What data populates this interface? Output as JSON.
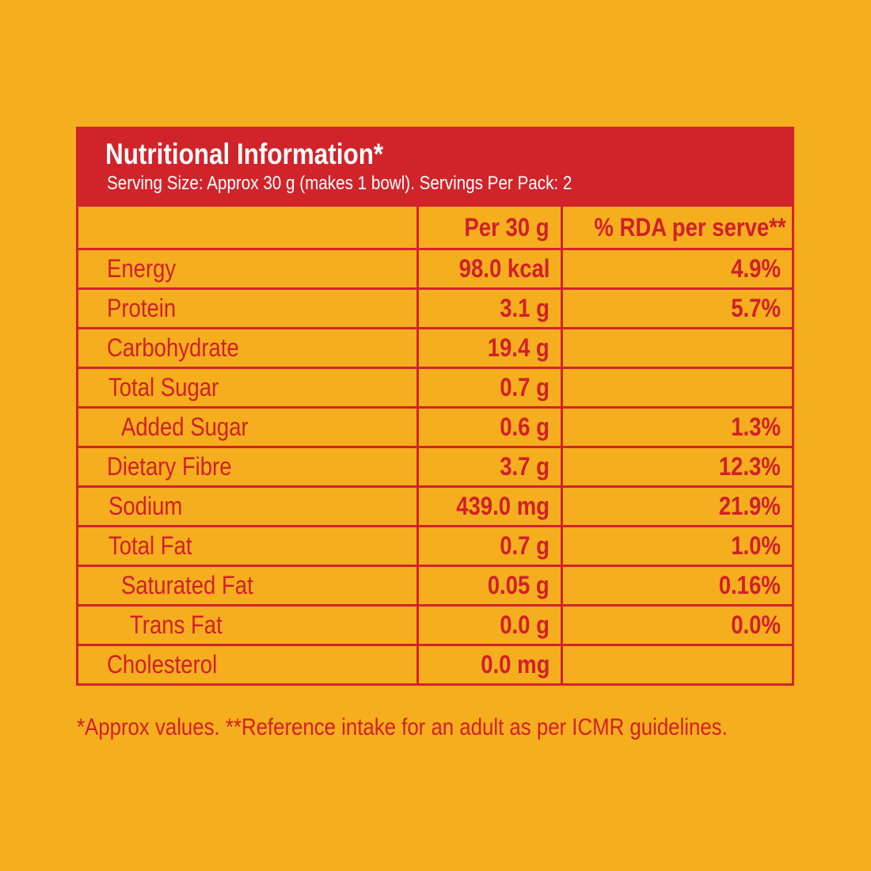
{
  "header": {
    "title": "Nutritional Information*",
    "subtitle": "Serving Size: Approx 30 g (makes 1 bowl). Servings Per Pack: 2"
  },
  "columns": [
    "",
    "Per 30 g",
    "% RDA per serve**"
  ],
  "rows": [
    {
      "name": "Energy",
      "indent": 0,
      "per": "98.0 kcal",
      "rda": "4.9%"
    },
    {
      "name": "Protein",
      "indent": 0,
      "per": "3.1 g",
      "rda": "5.7%"
    },
    {
      "name": "Carbohydrate",
      "indent": 0,
      "per": "19.4 g",
      "rda": ""
    },
    {
      "name": "Total Sugar",
      "indent": 1,
      "per": "0.7 g",
      "rda": ""
    },
    {
      "name": "Added Sugar",
      "indent": 2,
      "per": "0.6 g",
      "rda": "1.3%"
    },
    {
      "name": "Dietary Fibre",
      "indent": 0,
      "per": "3.7 g",
      "rda": "12.3%"
    },
    {
      "name": "Sodium",
      "indent": 1,
      "per": "439.0 mg",
      "rda": "21.9%"
    },
    {
      "name": "Total Fat",
      "indent": 1,
      "per": "0.7 g",
      "rda": "1.0%"
    },
    {
      "name": "Saturated Fat",
      "indent": 2,
      "per": "0.05 g",
      "rda": "0.16%"
    },
    {
      "name": "Trans Fat",
      "indent": 3,
      "per": "0.0 g",
      "rda": "0.0%"
    },
    {
      "name": "Cholesterol",
      "indent": 0,
      "per": "0.0 mg",
      "rda": ""
    }
  ],
  "footnote": "*Approx values. **Reference intake for an adult as per ICMR guidelines.",
  "colors": {
    "background": "#F5AE1D",
    "red": "#D1232A"
  }
}
